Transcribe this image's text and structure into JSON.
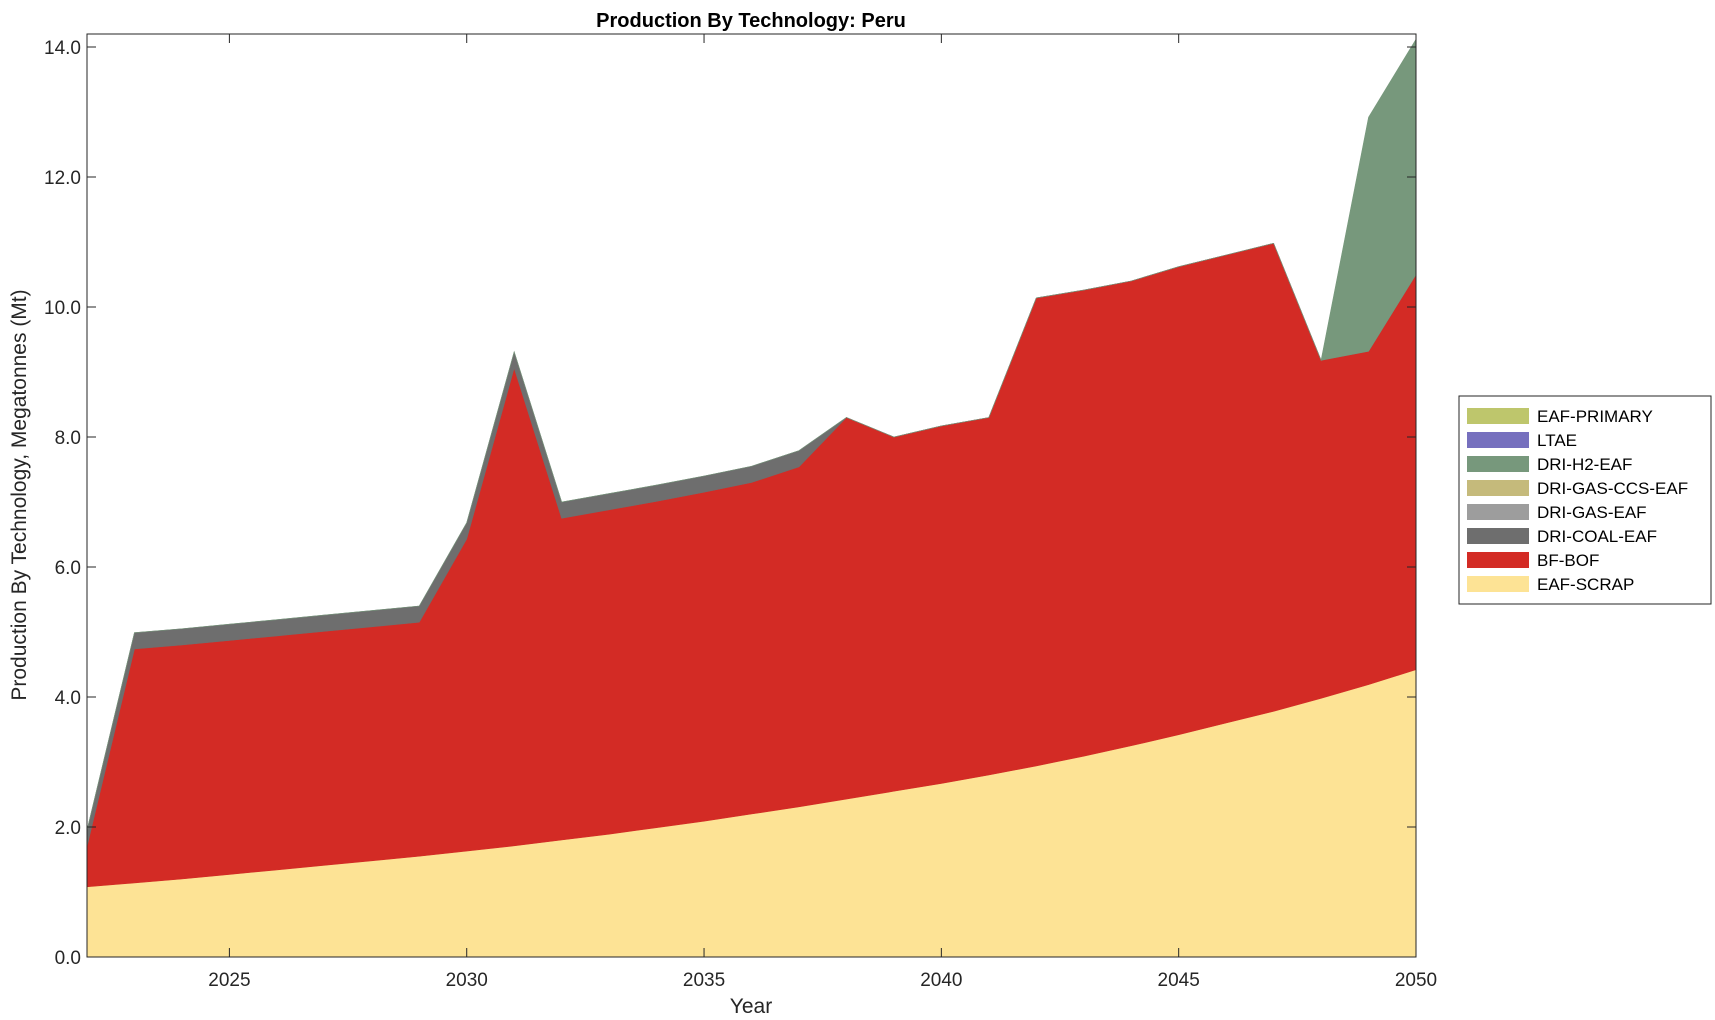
{
  "chart_data": {
    "type": "area",
    "stacked": true,
    "title": "Production By Technology: Peru",
    "xlabel": "Year",
    "ylabel": "Production By Technology, Megatonnes (Mt)",
    "xlim": [
      2022,
      2050
    ],
    "ylim": [
      0,
      14.2
    ],
    "x_ticks": [
      2025,
      2030,
      2035,
      2040,
      2045,
      2050
    ],
    "y_ticks": [
      "0.0",
      "2.0",
      "4.0",
      "6.0",
      "8.0",
      "10.0",
      "12.0",
      "14.0"
    ],
    "legend_position": "right",
    "grid": false,
    "x": [
      2022,
      2023,
      2024,
      2025,
      2026,
      2027,
      2028,
      2029,
      2030,
      2031,
      2032,
      2033,
      2034,
      2035,
      2036,
      2037,
      2038,
      2039,
      2040,
      2041,
      2042,
      2043,
      2044,
      2045,
      2046,
      2047,
      2048,
      2049,
      2050
    ],
    "series": [
      {
        "name": "EAF-SCRAP",
        "color": "#fde395",
        "values": [
          1.08,
          1.14,
          1.2,
          1.27,
          1.34,
          1.41,
          1.48,
          1.55,
          1.63,
          1.71,
          1.8,
          1.89,
          1.99,
          2.09,
          2.2,
          2.31,
          2.43,
          2.55,
          2.67,
          2.8,
          2.94,
          3.09,
          3.25,
          3.42,
          3.6,
          3.78,
          3.98,
          4.19,
          4.42
        ]
      },
      {
        "name": "BF-BOF",
        "color": "#d32b25",
        "values": [
          0.62,
          3.6,
          3.6,
          3.6,
          3.6,
          3.6,
          3.6,
          3.6,
          4.8,
          7.35,
          4.95,
          4.99,
          5.02,
          5.06,
          5.1,
          5.23,
          5.87,
          5.45,
          5.5,
          5.5,
          7.2,
          7.17,
          7.15,
          7.2,
          7.2,
          7.2,
          5.2,
          5.13,
          6.08
        ]
      },
      {
        "name": "DRI-COAL-EAF",
        "color": "#6e6e6e",
        "values": [
          0.25,
          0.25,
          0.25,
          0.25,
          0.25,
          0.25,
          0.25,
          0.25,
          0.25,
          0.25,
          0.25,
          0.25,
          0.25,
          0.25,
          0.25,
          0.25,
          0,
          0,
          0,
          0,
          0,
          0,
          0,
          0,
          0,
          0,
          0,
          0,
          0
        ]
      },
      {
        "name": "DRI-GAS-EAF",
        "color": "#9d9d9d",
        "values": [
          0,
          0,
          0,
          0,
          0,
          0,
          0,
          0,
          0,
          0,
          0,
          0,
          0,
          0,
          0,
          0,
          0,
          0,
          0,
          0,
          0,
          0,
          0,
          0,
          0,
          0,
          0,
          0,
          0
        ]
      },
      {
        "name": "DRI-GAS-CCS-EAF",
        "color": "#c5ba7b",
        "values": [
          0,
          0,
          0,
          0,
          0,
          0,
          0,
          0,
          0,
          0,
          0,
          0,
          0,
          0,
          0,
          0,
          0,
          0,
          0,
          0,
          0,
          0,
          0,
          0,
          0,
          0,
          0,
          0,
          0
        ]
      },
      {
        "name": "DRI-H2-EAF",
        "color": "#77987c",
        "values": [
          0,
          0,
          0,
          0,
          0,
          0,
          0,
          0,
          0,
          0,
          0,
          0,
          0,
          0,
          0,
          0,
          0,
          0,
          0,
          0,
          0,
          0,
          0,
          0,
          0,
          0,
          0,
          3.6,
          3.62
        ]
      },
      {
        "name": "LTAE",
        "color": "#7670be",
        "values": [
          0,
          0,
          0,
          0,
          0,
          0,
          0,
          0,
          0,
          0,
          0,
          0,
          0,
          0,
          0,
          0,
          0,
          0,
          0,
          0,
          0,
          0,
          0,
          0,
          0,
          0,
          0,
          0,
          0
        ]
      },
      {
        "name": "EAF-PRIMARY",
        "color": "#bec66c",
        "values": [
          0,
          0,
          0,
          0,
          0,
          0,
          0,
          0,
          0,
          0,
          0,
          0,
          0,
          0,
          0,
          0,
          0,
          0,
          0,
          0,
          0,
          0,
          0,
          0,
          0,
          0,
          0,
          0,
          0
        ]
      }
    ],
    "legend_order": [
      "EAF-PRIMARY",
      "LTAE",
      "DRI-H2-EAF",
      "DRI-GAS-CCS-EAF",
      "DRI-GAS-EAF",
      "DRI-COAL-EAF",
      "BF-BOF",
      "EAF-SCRAP"
    ]
  }
}
